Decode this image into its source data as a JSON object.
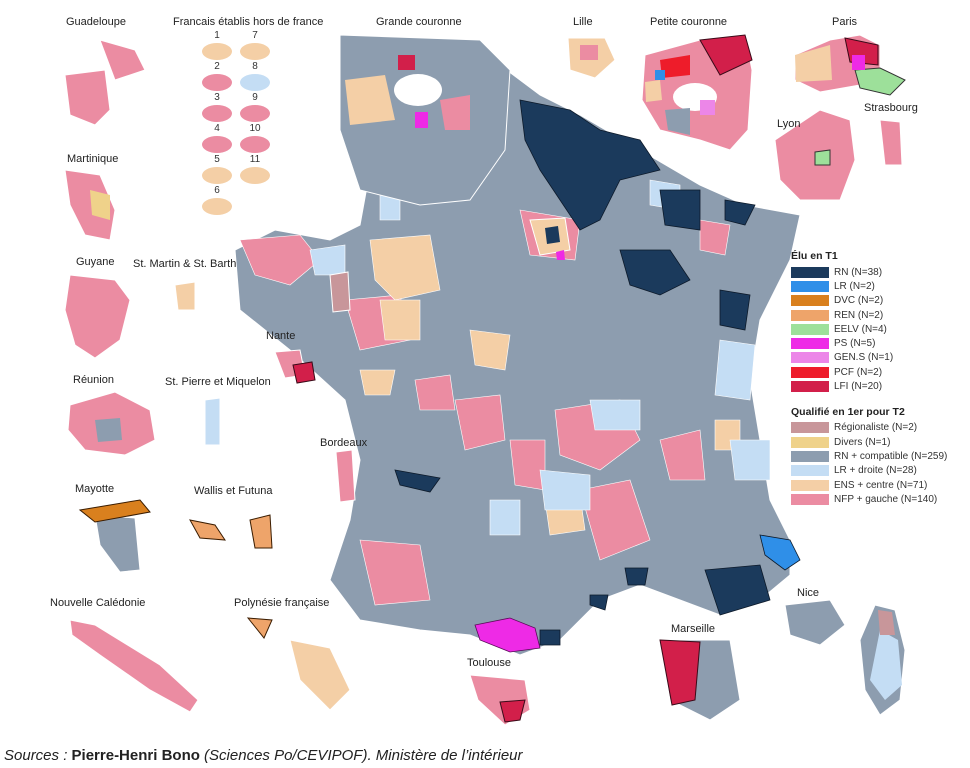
{
  "colors": {
    "rn": "#1b3a5c",
    "lr": "#2f8fe8",
    "dvc": "#d9801e",
    "ren": "#eea46a",
    "eelv": "#9de09a",
    "ps": "#ee2ae6",
    "gens": "#ec86e8",
    "pcf": "#ee1c2a",
    "lfi": "#d21f4a",
    "regionaliste": "#c8969a",
    "divers": "#efd28a",
    "rn_compatible": "#8d9daf",
    "lr_droite": "#c4ddf4",
    "ens_centre": "#f4cfa6",
    "nfp_gauche": "#eb8ca2"
  },
  "map_labels": {
    "guadeloupe": "Guadeloupe",
    "francais_etranger": "Francais établis hors de france",
    "grande_couronne": "Grande couronne",
    "lille": "Lille",
    "petite_couronne": "Petite couronne",
    "paris": "Paris",
    "strasbourg": "Strasbourg",
    "lyon": "Lyon",
    "martinique": "Martinique",
    "guyane": "Guyane",
    "st_martin": "St. Martin & St. Barth",
    "nante": "Nante",
    "reunion": "Réunion",
    "st_pierre": "St. Pierre et Miquelon",
    "bordeaux": "Bordeaux",
    "mayotte": "Mayotte",
    "wallis": "Wallis et Futuna",
    "nouvelle_caledonie": "Nouvelle Calédonie",
    "polynesie": "Polynésie française",
    "nice": "Nice",
    "marseille": "Marseille",
    "toulouse": "Toulouse"
  },
  "fhf_circles": [
    {
      "num": "1",
      "color": "ens_centre"
    },
    {
      "num": "7",
      "color": "ens_centre"
    },
    {
      "num": "2",
      "color": "nfp_gauche"
    },
    {
      "num": "8",
      "color": "lr_droite"
    },
    {
      "num": "3",
      "color": "nfp_gauche"
    },
    {
      "num": "9",
      "color": "nfp_gauche"
    },
    {
      "num": "4",
      "color": "nfp_gauche"
    },
    {
      "num": "10",
      "color": "nfp_gauche"
    },
    {
      "num": "5",
      "color": "ens_centre"
    },
    {
      "num": "11",
      "color": "ens_centre"
    },
    {
      "num": "6",
      "color": "ens_centre"
    }
  ],
  "legend": {
    "elu_title": "Élu en T1",
    "elu_items": [
      {
        "label": "RN (N=38)",
        "color": "rn"
      },
      {
        "label": "LR (N=2)",
        "color": "lr"
      },
      {
        "label": "DVC (N=2)",
        "color": "dvc"
      },
      {
        "label": "REN (N=2)",
        "color": "ren"
      },
      {
        "label": "EELV (N=4)",
        "color": "eelv"
      },
      {
        "label": "PS (N=5)",
        "color": "ps"
      },
      {
        "label": "GEN.S (N=1)",
        "color": "gens"
      },
      {
        "label": "PCF (N=2)",
        "color": "pcf"
      },
      {
        "label": "LFI (N=20)",
        "color": "lfi"
      }
    ],
    "qual_title": "Qualifié en 1er pour T2",
    "qual_items": [
      {
        "label": "Régionaliste (N=2)",
        "color": "regionaliste"
      },
      {
        "label": "Divers (N=1)",
        "color": "divers"
      },
      {
        "label": "RN + compatible (N=259)",
        "color": "rn_compatible"
      },
      {
        "label": "LR + droite (N=28)",
        "color": "lr_droite"
      },
      {
        "label": "ENS + centre (N=71)",
        "color": "ens_centre"
      },
      {
        "label": "NFP + gauche (N=140)",
        "color": "nfp_gauche"
      }
    ]
  },
  "sources": {
    "prefix": "Sources : ",
    "author": "Pierre-Henri Bono",
    "rest": " (Sciences Po/CEVIPOF). Ministère de l’intérieur"
  }
}
